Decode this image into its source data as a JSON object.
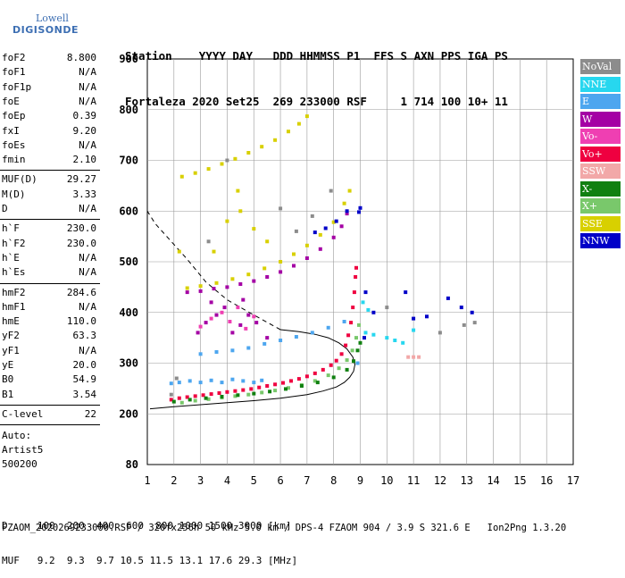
{
  "logo": {
    "line1": "Lowell",
    "line2": "DIGISONDE"
  },
  "header": {
    "row1": "Station    YYYY DAY   DDD HHMMSS P1  FFS S AXN PPS IGA PS",
    "row2": "Fortaleza 2020 Set25  269 233000 RSF     1 714 100 10+ 11"
  },
  "parameters": {
    "group1": [
      {
        "k": "foF2",
        "v": "8.800"
      },
      {
        "k": "foF1",
        "v": "N/A"
      },
      {
        "k": "foF1p",
        "v": "N/A"
      },
      {
        "k": "foE",
        "v": "N/A"
      },
      {
        "k": "foEp",
        "v": "0.39"
      },
      {
        "k": "fxI",
        "v": "9.20"
      },
      {
        "k": "foEs",
        "v": "N/A"
      },
      {
        "k": "fmin",
        "v": "2.10"
      }
    ],
    "group2": [
      {
        "k": "MUF(D)",
        "v": "29.27"
      },
      {
        "k": "M(D)",
        "v": "3.33"
      },
      {
        "k": "D",
        "v": "N/A"
      }
    ],
    "group3": [
      {
        "k": "h`F",
        "v": "230.0"
      },
      {
        "k": "h`F2",
        "v": "230.0"
      },
      {
        "k": "h`E",
        "v": "N/A"
      },
      {
        "k": "h`Es",
        "v": "N/A"
      }
    ],
    "group4": [
      {
        "k": "hmF2",
        "v": "284.6"
      },
      {
        "k": "hmF1",
        "v": "N/A"
      },
      {
        "k": "hmE",
        "v": "110.0"
      },
      {
        "k": "yF2",
        "v": "63.3"
      },
      {
        "k": "yF1",
        "v": "N/A"
      },
      {
        "k": "yE",
        "v": "20.0"
      },
      {
        "k": "B0",
        "v": "54.9"
      },
      {
        "k": "B1",
        "v": "3.54"
      }
    ],
    "group5": [
      {
        "k": "C-level",
        "v": "22"
      }
    ],
    "auto": [
      "Auto:",
      "Artist5",
      "500200"
    ]
  },
  "legend": [
    {
      "label": "NoVal",
      "color": "#8c8c8c"
    },
    {
      "label": "NNE",
      "color": "#27d7ef"
    },
    {
      "label": "E",
      "color": "#4da6ef"
    },
    {
      "label": "W",
      "color": "#a400a4"
    },
    {
      "label": "Vo-",
      "color": "#ef3fb2"
    },
    {
      "label": "Vo+",
      "color": "#ef0040"
    },
    {
      "label": "SSW",
      "color": "#f2a8a8"
    },
    {
      "label": "X-",
      "color": "#108010"
    },
    {
      "label": "X+",
      "color": "#79c86b"
    },
    {
      "label": "SSE",
      "color": "#d8d000"
    },
    {
      "label": "NNW",
      "color": "#0000c8"
    }
  ],
  "bottom": {
    "d_row": "D     100  200  400  600  800 1000 1500 3000 [km]",
    "muf_row": "MUF   9.2  9.3  9.7 10.5 11.5 13.1 17.6 29.3 [MHz]"
  },
  "footer": "FZAOM_2020269233000.RSF / 320fx256h 50 kHz 5.0 km / DPS-4 FZAOM 904 / 3.9 S 321.6 E   Ion2Png 1.3.20",
  "chart_data": {
    "type": "scatter",
    "title": "",
    "xlabel": "",
    "ylabel": "",
    "xlim": [
      1,
      17
    ],
    "ylim": [
      80,
      900
    ],
    "x_ticks": [
      1,
      2,
      3,
      4,
      5,
      6,
      7,
      8,
      9,
      10,
      11,
      12,
      13,
      14,
      15,
      16,
      17
    ],
    "y_ticks": [
      80,
      200,
      300,
      400,
      500,
      600,
      700,
      800,
      900
    ],
    "grid": true,
    "legend_position": "right",
    "series": [
      {
        "name": "Vo+",
        "color": "#ef0040",
        "points": [
          [
            1.9,
            228
          ],
          [
            2.2,
            231
          ],
          [
            2.5,
            233
          ],
          [
            2.8,
            235
          ],
          [
            3.1,
            237
          ],
          [
            3.4,
            239
          ],
          [
            3.7,
            241
          ],
          [
            4.0,
            243
          ],
          [
            4.3,
            245
          ],
          [
            4.6,
            247
          ],
          [
            4.9,
            249
          ],
          [
            5.2,
            252
          ],
          [
            5.5,
            255
          ],
          [
            5.8,
            258
          ],
          [
            6.1,
            261
          ],
          [
            6.4,
            265
          ],
          [
            6.7,
            269
          ],
          [
            7.0,
            274
          ],
          [
            7.3,
            280
          ],
          [
            7.6,
            287
          ],
          [
            7.9,
            296
          ],
          [
            8.1,
            305
          ],
          [
            8.3,
            318
          ],
          [
            8.45,
            335
          ],
          [
            8.55,
            355
          ],
          [
            8.65,
            380
          ],
          [
            8.72,
            410
          ],
          [
            8.78,
            440
          ],
          [
            8.82,
            470
          ],
          [
            8.85,
            488
          ]
        ]
      },
      {
        "name": "X+",
        "color": "#79c86b",
        "points": [
          [
            2.3,
            222
          ],
          [
            2.8,
            226
          ],
          [
            3.3,
            229
          ],
          [
            3.8,
            232
          ],
          [
            4.3,
            235
          ],
          [
            4.8,
            238
          ],
          [
            5.3,
            242
          ],
          [
            5.8,
            246
          ],
          [
            6.3,
            251
          ],
          [
            6.8,
            257
          ],
          [
            7.3,
            265
          ],
          [
            7.8,
            276
          ],
          [
            8.2,
            290
          ],
          [
            8.5,
            306
          ],
          [
            8.7,
            325
          ],
          [
            8.85,
            350
          ],
          [
            8.95,
            375
          ]
        ]
      },
      {
        "name": "E",
        "color": "#4da6ef",
        "points": [
          [
            1.9,
            260
          ],
          [
            2.2,
            262
          ],
          [
            2.6,
            265
          ],
          [
            3.0,
            262
          ],
          [
            3.4,
            266
          ],
          [
            3.8,
            262
          ],
          [
            4.2,
            268
          ],
          [
            4.6,
            265
          ],
          [
            5.0,
            262
          ],
          [
            5.3,
            266
          ],
          [
            3.0,
            318
          ],
          [
            3.6,
            322
          ],
          [
            4.2,
            325
          ],
          [
            4.8,
            330
          ],
          [
            5.4,
            338
          ],
          [
            6.0,
            345
          ],
          [
            6.6,
            352
          ],
          [
            7.2,
            360
          ],
          [
            7.8,
            370
          ],
          [
            8.4,
            382
          ],
          [
            8.9,
            300
          ]
        ]
      },
      {
        "name": "NNE",
        "color": "#27d7ef",
        "points": [
          [
            9.2,
            360
          ],
          [
            9.5,
            356
          ],
          [
            10.0,
            350
          ],
          [
            10.3,
            345
          ],
          [
            10.6,
            340
          ],
          [
            11.0,
            365
          ],
          [
            9.1,
            420
          ],
          [
            9.3,
            405
          ]
        ]
      },
      {
        "name": "W",
        "color": "#a400a4",
        "points": [
          [
            2.5,
            440
          ],
          [
            3.0,
            442
          ],
          [
            3.5,
            447
          ],
          [
            4.0,
            450
          ],
          [
            4.5,
            456
          ],
          [
            5.0,
            462
          ],
          [
            5.5,
            470
          ],
          [
            6.0,
            480
          ],
          [
            6.5,
            492
          ],
          [
            7.0,
            507
          ],
          [
            7.5,
            525
          ],
          [
            8.0,
            548
          ],
          [
            8.3,
            570
          ],
          [
            8.5,
            595
          ],
          [
            2.9,
            360
          ],
          [
            3.2,
            380
          ],
          [
            3.6,
            395
          ],
          [
            3.9,
            410
          ],
          [
            4.2,
            360
          ],
          [
            4.5,
            375
          ],
          [
            4.8,
            395
          ],
          [
            5.1,
            380
          ],
          [
            5.5,
            350
          ],
          [
            3.4,
            420
          ],
          [
            4.6,
            425
          ]
        ]
      },
      {
        "name": "Vo-",
        "color": "#ef3fb2",
        "points": [
          [
            3.0,
            372
          ],
          [
            3.4,
            388
          ],
          [
            3.8,
            400
          ],
          [
            4.1,
            382
          ],
          [
            4.4,
            410
          ],
          [
            4.7,
            368
          ],
          [
            5.0,
            392
          ]
        ]
      },
      {
        "name": "SSE",
        "color": "#d8d000",
        "points": [
          [
            2.5,
            448
          ],
          [
            3.0,
            452
          ],
          [
            3.6,
            458
          ],
          [
            4.2,
            466
          ],
          [
            4.8,
            475
          ],
          [
            5.4,
            487
          ],
          [
            6.0,
            500
          ],
          [
            6.5,
            515
          ],
          [
            7.0,
            532
          ],
          [
            7.5,
            553
          ],
          [
            8.0,
            578
          ],
          [
            8.4,
            615
          ],
          [
            8.6,
            640
          ],
          [
            2.3,
            668
          ],
          [
            2.8,
            675
          ],
          [
            3.3,
            683
          ],
          [
            3.8,
            693
          ],
          [
            4.3,
            703
          ],
          [
            4.8,
            715
          ],
          [
            5.3,
            727
          ],
          [
            5.8,
            740
          ],
          [
            6.3,
            757
          ],
          [
            6.7,
            772
          ],
          [
            7.0,
            787
          ],
          [
            4.0,
            580
          ],
          [
            4.5,
            600
          ],
          [
            5.0,
            565
          ],
          [
            3.5,
            520
          ],
          [
            4.4,
            640
          ],
          [
            2.2,
            520
          ],
          [
            5.5,
            540
          ]
        ]
      },
      {
        "name": "NNW",
        "color": "#0000c8",
        "points": [
          [
            7.3,
            558
          ],
          [
            7.7,
            566
          ],
          [
            8.1,
            580
          ],
          [
            8.5,
            600
          ],
          [
            8.95,
            598
          ],
          [
            9.0,
            606
          ],
          [
            9.15,
            350
          ],
          [
            9.2,
            440
          ],
          [
            9.5,
            400
          ],
          [
            10.7,
            440
          ],
          [
            11.5,
            392
          ],
          [
            12.3,
            428
          ],
          [
            12.8,
            410
          ],
          [
            13.2,
            400
          ],
          [
            11.0,
            388
          ]
        ]
      },
      {
        "name": "X-",
        "color": "#108010",
        "points": [
          [
            2.0,
            224
          ],
          [
            2.6,
            228
          ],
          [
            3.2,
            231
          ],
          [
            3.8,
            234
          ],
          [
            4.4,
            237
          ],
          [
            5.0,
            240
          ],
          [
            5.6,
            244
          ],
          [
            6.2,
            249
          ],
          [
            6.8,
            255
          ],
          [
            7.4,
            262
          ],
          [
            8.0,
            272
          ],
          [
            8.5,
            287
          ],
          [
            8.75,
            304
          ],
          [
            8.9,
            325
          ],
          [
            9.0,
            340
          ]
        ]
      },
      {
        "name": "SSW",
        "color": "#f2a8a8",
        "points": [
          [
            10.8,
            312
          ],
          [
            11.0,
            312
          ],
          [
            11.2,
            312
          ]
        ]
      },
      {
        "name": "NoVal",
        "color": "#8c8c8c",
        "points": [
          [
            1.9,
            238
          ],
          [
            2.1,
            270
          ],
          [
            3.3,
            540
          ],
          [
            4.0,
            700
          ],
          [
            6.0,
            605
          ],
          [
            6.6,
            560
          ],
          [
            7.2,
            590
          ],
          [
            7.9,
            640
          ],
          [
            10.0,
            410
          ],
          [
            12.0,
            360
          ],
          [
            12.9,
            375
          ],
          [
            13.3,
            380
          ]
        ]
      }
    ],
    "curves": [
      {
        "name": "profile",
        "style": "solid",
        "points": [
          [
            1.1,
            210
          ],
          [
            2.0,
            214
          ],
          [
            3.0,
            218
          ],
          [
            4.0,
            222
          ],
          [
            5.0,
            226
          ],
          [
            6.0,
            231
          ],
          [
            7.0,
            238
          ],
          [
            7.6,
            245
          ],
          [
            8.1,
            253
          ],
          [
            8.4,
            262
          ],
          [
            8.6,
            272
          ],
          [
            8.75,
            284
          ],
          [
            8.8,
            297
          ],
          [
            8.72,
            312
          ],
          [
            8.5,
            328
          ],
          [
            8.2,
            340
          ],
          [
            7.8,
            350
          ],
          [
            7.3,
            357
          ],
          [
            6.7,
            362
          ],
          [
            6.0,
            366
          ]
        ]
      },
      {
        "name": "profile-extrapolation",
        "style": "dashed",
        "points": [
          [
            6.0,
            366
          ],
          [
            5.0,
            395
          ],
          [
            4.0,
            425
          ],
          [
            3.2,
            460
          ],
          [
            2.5,
            505
          ],
          [
            1.9,
            540
          ],
          [
            1.3,
            575
          ],
          [
            1.0,
            600
          ]
        ]
      }
    ]
  }
}
